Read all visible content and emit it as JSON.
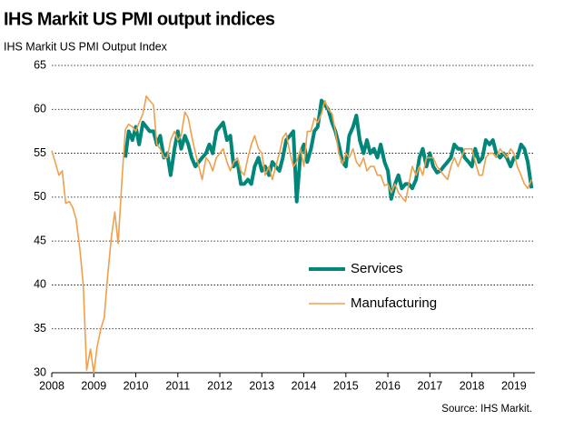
{
  "chart_data": {
    "type": "line",
    "title": "IHS Markit US PMI output indices",
    "subtitle": "IHS Markit US PMI Output  Index",
    "source": "Source: IHS Markit.",
    "x": [
      2008.0,
      2008.08,
      2008.17,
      2008.25,
      2008.33,
      2008.42,
      2008.5,
      2008.58,
      2008.67,
      2008.75,
      2008.83,
      2008.92,
      2009.0,
      2009.08,
      2009.17,
      2009.25,
      2009.33,
      2009.42,
      2009.5,
      2009.58,
      2009.67,
      2009.75,
      2009.83,
      2009.92,
      2010.0,
      2010.08,
      2010.17,
      2010.25,
      2010.33,
      2010.42,
      2010.5,
      2010.58,
      2010.67,
      2010.75,
      2010.83,
      2010.92,
      2011.0,
      2011.08,
      2011.17,
      2011.25,
      2011.33,
      2011.42,
      2011.5,
      2011.58,
      2011.67,
      2011.75,
      2011.83,
      2011.92,
      2012.0,
      2012.08,
      2012.17,
      2012.25,
      2012.33,
      2012.42,
      2012.5,
      2012.58,
      2012.67,
      2012.75,
      2012.83,
      2012.92,
      2013.0,
      2013.08,
      2013.17,
      2013.25,
      2013.33,
      2013.42,
      2013.5,
      2013.58,
      2013.67,
      2013.75,
      2013.83,
      2013.92,
      2014.0,
      2014.08,
      2014.17,
      2014.25,
      2014.33,
      2014.42,
      2014.5,
      2014.58,
      2014.67,
      2014.75,
      2014.83,
      2014.92,
      2015.0,
      2015.08,
      2015.17,
      2015.25,
      2015.33,
      2015.42,
      2015.5,
      2015.58,
      2015.67,
      2015.75,
      2015.83,
      2015.92,
      2016.0,
      2016.08,
      2016.17,
      2016.25,
      2016.33,
      2016.42,
      2016.5,
      2016.58,
      2016.67,
      2016.75,
      2016.83,
      2016.92,
      2017.0,
      2017.08,
      2017.17,
      2017.25,
      2017.33,
      2017.42,
      2017.5,
      2017.58,
      2017.67,
      2017.75,
      2017.83,
      2017.92,
      2018.0,
      2018.08,
      2018.17,
      2018.25,
      2018.33,
      2018.42,
      2018.5,
      2018.58,
      2018.67,
      2018.75,
      2018.83,
      2018.92,
      2019.0,
      2019.08,
      2019.17,
      2019.25,
      2019.33,
      2019.42
    ],
    "series": [
      {
        "name": "Services",
        "color": "#00877a",
        "width": 4,
        "values": [
          null,
          null,
          null,
          null,
          null,
          null,
          null,
          null,
          null,
          null,
          null,
          null,
          null,
          null,
          null,
          null,
          null,
          null,
          null,
          null,
          null,
          54.5,
          57.5,
          56.5,
          58,
          56,
          58.5,
          58,
          57.5,
          57.5,
          56,
          57,
          54.5,
          55,
          52.5,
          55.5,
          57.5,
          55.5,
          57,
          56,
          54.5,
          53.5,
          54,
          54.5,
          55,
          56,
          55,
          57.5,
          58,
          58.5,
          56.5,
          57,
          53.5,
          54,
          51.5,
          51.5,
          52,
          51.5,
          53.5,
          54.5,
          53,
          53.5,
          52.5,
          54,
          53.5,
          53,
          54.5,
          56.5,
          57,
          57.5,
          49.5,
          55,
          56,
          54,
          55.5,
          57.5,
          58,
          61,
          60.5,
          60,
          58.5,
          57.5,
          56,
          54,
          53.5,
          57,
          58,
          59.3,
          56.5,
          55,
          56.5,
          55,
          55.5,
          54.5,
          56,
          54,
          53,
          49.8,
          51.5,
          52.5,
          51,
          51.5,
          51.5,
          51,
          52,
          54.5,
          55.5,
          53.5,
          55,
          53.5,
          52.8,
          53,
          53.5,
          54,
          54.5,
          56,
          55.5,
          55.5,
          54.5,
          54,
          53.5,
          55.5,
          54,
          54.5,
          56.5,
          56,
          56.5,
          55,
          54.5,
          55,
          54.5,
          53.5,
          54.5,
          54.5,
          56,
          55.5,
          54,
          51
        ]
      },
      {
        "name": "Manufacturing",
        "color": "#f0a04b",
        "width": 1.6,
        "values": [
          55.3,
          54,
          52.5,
          53,
          49.3,
          49.5,
          48.8,
          47.5,
          44,
          40,
          30.3,
          32.7,
          30,
          33,
          35,
          36.3,
          41,
          45.5,
          48.3,
          44.7,
          52,
          57.7,
          58.3,
          58,
          57.5,
          58.5,
          59.5,
          61.5,
          61,
          60.5,
          56,
          55.5,
          54.5,
          54.5,
          56.5,
          57.5,
          56.5,
          57,
          59.7,
          59,
          57,
          55,
          53.5,
          52,
          54.5,
          54,
          53,
          54.5,
          55,
          55.5,
          54,
          53,
          54,
          54.5,
          53,
          52.5,
          54.5,
          56,
          57,
          55.5,
          55,
          52.5,
          53.5,
          52,
          53.5,
          55,
          56.8,
          57.3,
          55,
          53.5,
          54,
          55.5,
          53.5,
          57.5,
          57.5,
          59,
          58.5,
          59.5,
          61,
          60,
          59.5,
          57.5,
          55,
          53.8,
          55,
          54.5,
          55.5,
          54,
          53.5,
          54.5,
          53,
          53.5,
          53.5,
          52.5,
          52.5,
          51.3,
          51.5,
          50.5,
          51.5,
          50.5,
          50,
          49.5,
          51.5,
          53.5,
          52.5,
          53.5,
          52.5,
          54.5,
          54.5,
          54.5,
          53.5,
          53,
          52.5,
          52,
          53.5,
          54.5,
          53.5,
          54.5,
          55.5,
          55.5,
          55.5,
          54,
          52.5,
          52.5,
          54.5,
          55,
          55,
          54.5,
          55.5,
          55,
          54.5,
          55.5,
          55,
          53.5,
          52.5,
          51.5,
          51,
          52
        ]
      }
    ],
    "xlim": [
      2008,
      2019.5
    ],
    "xticks": [
      2008,
      2009,
      2010,
      2011,
      2012,
      2013,
      2014,
      2015,
      2016,
      2017,
      2018,
      2019
    ],
    "ylim": [
      30,
      65
    ],
    "yticks": [
      30,
      35,
      40,
      45,
      50,
      55,
      60,
      65
    ],
    "grid": true
  }
}
